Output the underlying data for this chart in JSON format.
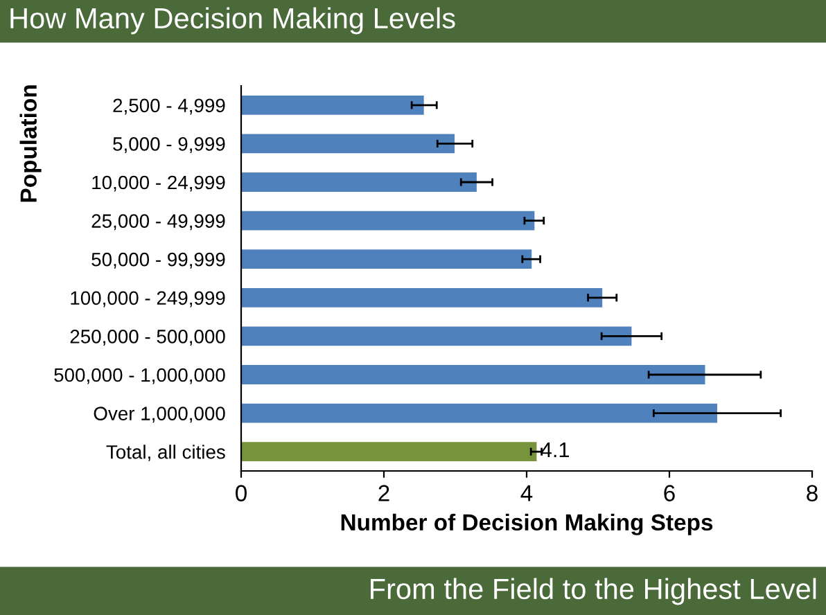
{
  "chart_data": {
    "type": "bar",
    "orientation": "horizontal",
    "title": "How Many Decision Making Levels",
    "xlabel": "Number of Decision Making Steps",
    "ylabel": "Population",
    "categories": [
      "2,500 - 4,999",
      "5,000 - 9,999",
      "10,000 - 24,999",
      "25,000 - 49,999",
      "50,000 - 99,999",
      "100,000 - 249,999",
      "250,000 - 500,000",
      "500,000 - 1,000,000",
      "Over 1,000,000",
      "Total, all cities"
    ],
    "values": [
      2.56,
      2.99,
      3.3,
      4.11,
      4.07,
      5.06,
      5.47,
      6.5,
      6.67,
      4.14
    ],
    "colors": [
      "#4f81bd",
      "#4f81bd",
      "#4f81bd",
      "#4f81bd",
      "#4f81bd",
      "#4f81bd",
      "#4f81bd",
      "#4f81bd",
      "#4f81bd",
      "#77933c"
    ],
    "errors": [
      [
        2.39,
        2.74
      ],
      [
        2.75,
        3.24
      ],
      [
        3.08,
        3.52
      ],
      [
        3.97,
        4.24
      ],
      [
        3.94,
        4.19
      ],
      [
        4.86,
        5.26
      ],
      [
        5.05,
        5.89
      ],
      [
        5.71,
        7.28
      ],
      [
        5.78,
        7.56
      ],
      [
        4.06,
        4.21
      ]
    ],
    "value_labels": [
      null,
      null,
      null,
      null,
      null,
      null,
      null,
      null,
      null,
      "4.1"
    ],
    "xlim": [
      0,
      8
    ],
    "xticks": [
      0,
      2,
      4,
      6,
      8
    ],
    "grid": false,
    "legend": false,
    "annotations": [
      "From the Field to the Highest Level"
    ]
  }
}
